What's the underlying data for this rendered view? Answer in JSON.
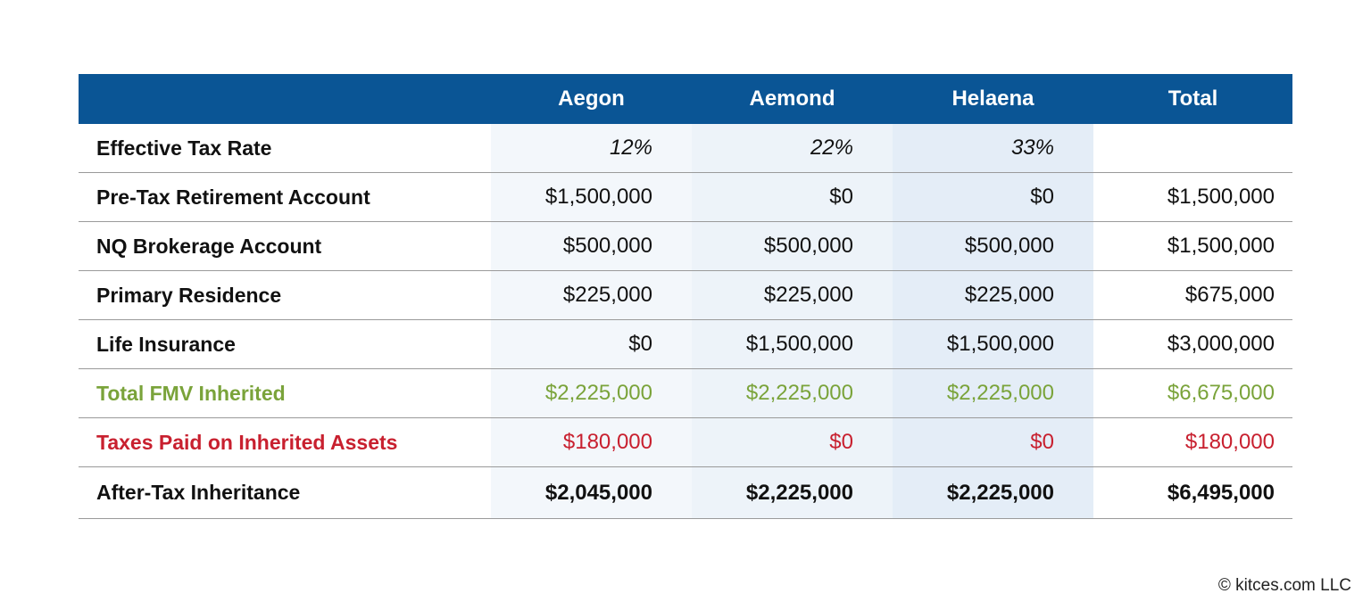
{
  "table": {
    "columns": [
      "Aegon",
      "Aemond",
      "Helaena",
      "Total"
    ],
    "rows": [
      {
        "label": "Effective Tax Rate",
        "cells": [
          "12%",
          "22%",
          "33%",
          null
        ]
      },
      {
        "label": "Pre-Tax Retirement Account",
        "cells": [
          "$1,500,000",
          "$0",
          "$0",
          "$1,500,000"
        ]
      },
      {
        "label": "NQ Brokerage Account",
        "cells": [
          "$500,000",
          "$500,000",
          "$500,000",
          "$1,500,000"
        ]
      },
      {
        "label": "Primary Residence",
        "cells": [
          "$225,000",
          "$225,000",
          "$225,000",
          "$675,000"
        ]
      },
      {
        "label": "Life Insurance",
        "cells": [
          "$0",
          "$1,500,000",
          "$1,500,000",
          "$3,000,000"
        ]
      },
      {
        "label": "Total FMV Inherited",
        "cells": [
          "$2,225,000",
          "$2,225,000",
          "$2,225,000",
          "$6,675,000"
        ]
      },
      {
        "label": "Taxes Paid on Inherited Assets",
        "cells": [
          "$180,000",
          "$0",
          "$0",
          "$180,000"
        ]
      },
      {
        "label": "After-Tax Inheritance",
        "cells": [
          "$2,045,000",
          "$2,225,000",
          "$2,225,000",
          "$6,495,000"
        ]
      }
    ]
  },
  "footer": {
    "copyright": "© kitces.com LLC"
  }
}
